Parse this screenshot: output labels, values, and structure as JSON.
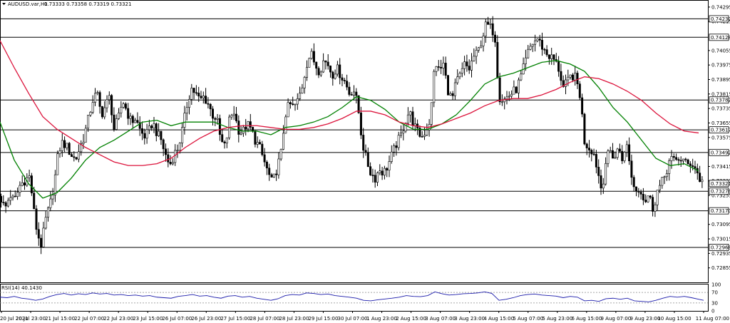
{
  "header": {
    "symbol_label": "AUDUSD.var,H1",
    "ohlc_label": "0.73333 0.73358 0.73319 0.73321"
  },
  "rsi": {
    "label": "RSI(14) 40.1430",
    "levels": [
      30,
      70
    ],
    "scale_labels": [
      "100",
      "70",
      "30",
      "0"
    ]
  },
  "chart_data": {
    "type": "candlestick",
    "symbol": "AUDUSD.var",
    "timeframe": "H1",
    "last": {
      "open": 0.73333,
      "high": 0.73358,
      "low": 0.73319,
      "close": 0.73321
    },
    "price_axis": {
      "range": [
        0.72775,
        0.7433
      ],
      "tick_labels": [
        "0.74295",
        "0.74215",
        "0.74055",
        "0.73975",
        "0.73895",
        "0.73815",
        "0.73735",
        "0.73655",
        "0.73575",
        "0.73415",
        "0.73335",
        "0.73255",
        "0.73095",
        "0.73015",
        "0.72935",
        "0.72855"
      ]
    },
    "time_axis_labels": [
      "20 Jul 2021",
      "20 Jul 23:00",
      "21 Jul 15:00",
      "22 Jul 07:00",
      "22 Jul 23:00",
      "23 Jul 15:00",
      "26 Jul 07:00",
      "26 Jul 23:00",
      "27 Jul 15:00",
      "28 Jul 07:00",
      "28 Jul 23:00",
      "29 Jul 15:00",
      "30 Jul 07:00",
      "1 Aug 23:00",
      "2 Aug 15:00",
      "3 Aug 07:00",
      "3 Aug 23:00",
      "4 Aug 15:00",
      "5 Aug 07:00",
      "5 Aug 23:00",
      "6 Aug 15:00",
      "9 Aug 07:00",
      "9 Aug 23:00",
      "10 Aug 15:00",
      "11 Aug 07:00"
    ],
    "horizontal_levels": [
      {
        "label": "0.74230",
        "value": 0.7423
      },
      {
        "label": "0.74128",
        "value": 0.74128
      },
      {
        "label": "0.73782",
        "value": 0.73782
      },
      {
        "label": "0.73617",
        "value": 0.73617
      },
      {
        "label": "0.73492",
        "value": 0.73492
      },
      {
        "label": "0.73278",
        "value": 0.73278
      },
      {
        "label": "0.73170",
        "value": 0.7317
      },
      {
        "label": "0.72968",
        "value": 0.72968
      }
    ],
    "current_price_label": "0.73321",
    "current_price": 0.73321,
    "close_path": [
      [
        0,
        0.7325
      ],
      [
        7,
        0.7318
      ],
      [
        14,
        0.7326
      ],
      [
        20,
        0.7322
      ],
      [
        28,
        0.7331
      ],
      [
        35,
        0.7334
      ],
      [
        42,
        0.7336
      ],
      [
        47,
        0.7318
      ],
      [
        52,
        0.7305
      ],
      [
        58,
        0.7298
      ],
      [
        64,
        0.7312
      ],
      [
        70,
        0.732
      ],
      [
        76,
        0.7332
      ],
      [
        82,
        0.735
      ],
      [
        88,
        0.7355
      ],
      [
        94,
        0.7352
      ],
      [
        100,
        0.7348
      ],
      [
        106,
        0.7345
      ],
      [
        112,
        0.7352
      ],
      [
        118,
        0.7358
      ],
      [
        124,
        0.7368
      ],
      [
        130,
        0.7378
      ],
      [
        136,
        0.7382
      ],
      [
        142,
        0.737
      ],
      [
        148,
        0.7375
      ],
      [
        154,
        0.738
      ],
      [
        160,
        0.7362
      ],
      [
        166,
        0.7368
      ],
      [
        172,
        0.7378
      ],
      [
        178,
        0.7372
      ],
      [
        184,
        0.7366
      ],
      [
        190,
        0.7368
      ],
      [
        196,
        0.7362
      ],
      [
        202,
        0.7358
      ],
      [
        208,
        0.736
      ],
      [
        214,
        0.7366
      ],
      [
        220,
        0.736
      ],
      [
        226,
        0.7356
      ],
      [
        232,
        0.7348
      ],
      [
        238,
        0.7342
      ],
      [
        244,
        0.7348
      ],
      [
        250,
        0.7352
      ],
      [
        256,
        0.7362
      ],
      [
        262,
        0.7375
      ],
      [
        268,
        0.7385
      ],
      [
        274,
        0.7382
      ],
      [
        280,
        0.7378
      ],
      [
        286,
        0.738
      ],
      [
        292,
        0.7376
      ],
      [
        298,
        0.737
      ],
      [
        304,
        0.7368
      ],
      [
        310,
        0.7355
      ],
      [
        316,
        0.7352
      ],
      [
        322,
        0.7368
      ],
      [
        328,
        0.7372
      ],
      [
        334,
        0.7362
      ],
      [
        340,
        0.736
      ],
      [
        346,
        0.7365
      ],
      [
        352,
        0.7362
      ],
      [
        358,
        0.7356
      ],
      [
        364,
        0.7352
      ],
      [
        370,
        0.7345
      ],
      [
        376,
        0.7338
      ],
      [
        382,
        0.7332
      ],
      [
        388,
        0.734
      ],
      [
        394,
        0.7348
      ],
      [
        400,
        0.737
      ],
      [
        406,
        0.7376
      ],
      [
        412,
        0.7374
      ],
      [
        418,
        0.7378
      ],
      [
        424,
        0.7386
      ],
      [
        430,
        0.7398
      ],
      [
        436,
        0.7404
      ],
      [
        442,
        0.7398
      ],
      [
        448,
        0.7394
      ],
      [
        454,
        0.74
      ],
      [
        460,
        0.7398
      ],
      [
        466,
        0.7392
      ],
      [
        472,
        0.7396
      ],
      [
        478,
        0.7392
      ],
      [
        484,
        0.7388
      ],
      [
        490,
        0.7382
      ],
      [
        496,
        0.7384
      ],
      [
        502,
        0.7375
      ],
      [
        508,
        0.7355
      ],
      [
        514,
        0.7345
      ],
      [
        520,
        0.7338
      ],
      [
        526,
        0.7335
      ],
      [
        532,
        0.734
      ],
      [
        538,
        0.7338
      ],
      [
        544,
        0.7342
      ],
      [
        550,
        0.7348
      ],
      [
        556,
        0.7354
      ],
      [
        562,
        0.7358
      ],
      [
        568,
        0.7366
      ],
      [
        574,
        0.7372
      ],
      [
        580,
        0.7365
      ],
      [
        586,
        0.736
      ],
      [
        592,
        0.7358
      ],
      [
        598,
        0.7362
      ],
      [
        604,
        0.7368
      ],
      [
        610,
        0.74
      ],
      [
        616,
        0.7394
      ],
      [
        622,
        0.7398
      ],
      [
        628,
        0.7384
      ],
      [
        634,
        0.7378
      ],
      [
        640,
        0.7388
      ],
      [
        646,
        0.7392
      ],
      [
        652,
        0.7398
      ],
      [
        658,
        0.7395
      ],
      [
        664,
        0.7402
      ],
      [
        670,
        0.7404
      ],
      [
        676,
        0.7412
      ],
      [
        682,
        0.742
      ],
      [
        688,
        0.7418
      ],
      [
        694,
        0.7415
      ],
      [
        700,
        0.738
      ],
      [
        706,
        0.7378
      ],
      [
        712,
        0.738
      ],
      [
        718,
        0.7382
      ],
      [
        724,
        0.7384
      ],
      [
        730,
        0.739
      ],
      [
        736,
        0.7398
      ],
      [
        742,
        0.7406
      ],
      [
        748,
        0.741
      ],
      [
        754,
        0.7412
      ],
      [
        760,
        0.7408
      ],
      [
        766,
        0.7404
      ],
      [
        772,
        0.7402
      ],
      [
        778,
        0.74
      ],
      [
        784,
        0.7395
      ],
      [
        790,
        0.7385
      ],
      [
        796,
        0.7388
      ],
      [
        802,
        0.7392
      ],
      [
        808,
        0.739
      ],
      [
        814,
        0.738
      ],
      [
        820,
        0.7355
      ],
      [
        826,
        0.7352
      ],
      [
        832,
        0.735
      ],
      [
        838,
        0.734
      ],
      [
        844,
        0.7328
      ],
      [
        850,
        0.7345
      ],
      [
        856,
        0.735
      ],
      [
        862,
        0.7346
      ],
      [
        868,
        0.7352
      ],
      [
        874,
        0.7345
      ],
      [
        880,
        0.7354
      ],
      [
        886,
        0.7335
      ],
      [
        892,
        0.7328
      ],
      [
        898,
        0.733
      ],
      [
        904,
        0.7322
      ],
      [
        910,
        0.7326
      ],
      [
        916,
        0.7318
      ],
      [
        922,
        0.7328
      ],
      [
        928,
        0.7332
      ],
      [
        934,
        0.7338
      ],
      [
        940,
        0.7346
      ],
      [
        946,
        0.7344
      ],
      [
        952,
        0.7346
      ],
      [
        958,
        0.7345
      ],
      [
        964,
        0.7342
      ],
      [
        970,
        0.7344
      ],
      [
        976,
        0.734
      ],
      [
        982,
        0.7334
      ],
      [
        987,
        0.73321
      ]
    ],
    "moving_averages": [
      {
        "color": "#008000",
        "points": [
          [
            0,
            0.7366
          ],
          [
            20,
            0.7345
          ],
          [
            40,
            0.7332
          ],
          [
            60,
            0.7324
          ],
          [
            80,
            0.7327
          ],
          [
            100,
            0.7335
          ],
          [
            120,
            0.7345
          ],
          [
            140,
            0.7352
          ],
          [
            160,
            0.7356
          ],
          [
            180,
            0.7361
          ],
          [
            200,
            0.7366
          ],
          [
            220,
            0.7367
          ],
          [
            240,
            0.7364
          ],
          [
            260,
            0.7366
          ],
          [
            280,
            0.7366
          ],
          [
            300,
            0.7366
          ],
          [
            320,
            0.7363
          ],
          [
            340,
            0.7361
          ],
          [
            360,
            0.7361
          ],
          [
            380,
            0.7359
          ],
          [
            400,
            0.7363
          ],
          [
            420,
            0.7364
          ],
          [
            440,
            0.7366
          ],
          [
            460,
            0.7369
          ],
          [
            480,
            0.7374
          ],
          [
            500,
            0.738
          ],
          [
            520,
            0.7378
          ],
          [
            540,
            0.7373
          ],
          [
            560,
            0.7366
          ],
          [
            580,
            0.7362
          ],
          [
            600,
            0.7362
          ],
          [
            620,
            0.7365
          ],
          [
            640,
            0.737
          ],
          [
            660,
            0.7378
          ],
          [
            680,
            0.7387
          ],
          [
            700,
            0.7391
          ],
          [
            720,
            0.7393
          ],
          [
            740,
            0.7396
          ],
          [
            760,
            0.7399
          ],
          [
            780,
            0.74
          ],
          [
            800,
            0.7398
          ],
          [
            820,
            0.7394
          ],
          [
            840,
            0.7385
          ],
          [
            860,
            0.7374
          ],
          [
            880,
            0.7366
          ],
          [
            900,
            0.7356
          ],
          [
            920,
            0.7346
          ],
          [
            940,
            0.7342
          ],
          [
            960,
            0.7343
          ],
          [
            980,
            0.7339
          ]
        ]
      },
      {
        "color": "#dc143c",
        "points": [
          [
            0,
            0.7411
          ],
          [
            20,
            0.7396
          ],
          [
            40,
            0.7382
          ],
          [
            60,
            0.7369
          ],
          [
            80,
            0.7362
          ],
          [
            100,
            0.7357
          ],
          [
            120,
            0.7352
          ],
          [
            140,
            0.7348
          ],
          [
            160,
            0.7344
          ],
          [
            180,
            0.7342
          ],
          [
            200,
            0.7342
          ],
          [
            220,
            0.7343
          ],
          [
            240,
            0.7346
          ],
          [
            260,
            0.7352
          ],
          [
            280,
            0.7357
          ],
          [
            300,
            0.7361
          ],
          [
            320,
            0.7363
          ],
          [
            340,
            0.7364
          ],
          [
            360,
            0.7364
          ],
          [
            380,
            0.7363
          ],
          [
            400,
            0.7362
          ],
          [
            420,
            0.7362
          ],
          [
            440,
            0.7363
          ],
          [
            460,
            0.7365
          ],
          [
            480,
            0.7368
          ],
          [
            500,
            0.7372
          ],
          [
            520,
            0.7372
          ],
          [
            540,
            0.737
          ],
          [
            560,
            0.7366
          ],
          [
            580,
            0.7364
          ],
          [
            600,
            0.7363
          ],
          [
            620,
            0.7365
          ],
          [
            640,
            0.7368
          ],
          [
            660,
            0.7371
          ],
          [
            680,
            0.7375
          ],
          [
            700,
            0.7378
          ],
          [
            720,
            0.7379
          ],
          [
            740,
            0.7379
          ],
          [
            760,
            0.7381
          ],
          [
            780,
            0.7384
          ],
          [
            800,
            0.7388
          ],
          [
            820,
            0.7391
          ],
          [
            840,
            0.739
          ],
          [
            860,
            0.7387
          ],
          [
            880,
            0.7383
          ],
          [
            900,
            0.7378
          ],
          [
            920,
            0.7371
          ],
          [
            940,
            0.7365
          ],
          [
            960,
            0.7361
          ],
          [
            980,
            0.736
          ]
        ]
      }
    ],
    "rsi_series": [
      [
        0,
        52
      ],
      [
        10,
        50
      ],
      [
        20,
        55
      ],
      [
        30,
        48
      ],
      [
        40,
        45
      ],
      [
        50,
        40
      ],
      [
        60,
        45
      ],
      [
        70,
        55
      ],
      [
        80,
        62
      ],
      [
        90,
        66
      ],
      [
        100,
        60
      ],
      [
        110,
        65
      ],
      [
        120,
        62
      ],
      [
        130,
        68
      ],
      [
        140,
        64
      ],
      [
        150,
        66
      ],
      [
        160,
        60
      ],
      [
        170,
        62
      ],
      [
        180,
        58
      ],
      [
        190,
        60
      ],
      [
        200,
        56
      ],
      [
        210,
        58
      ],
      [
        220,
        52
      ],
      [
        230,
        50
      ],
      [
        240,
        48
      ],
      [
        250,
        55
      ],
      [
        260,
        58
      ],
      [
        270,
        62
      ],
      [
        280,
        56
      ],
      [
        290,
        58
      ],
      [
        300,
        52
      ],
      [
        310,
        48
      ],
      [
        320,
        56
      ],
      [
        330,
        58
      ],
      [
        340,
        52
      ],
      [
        350,
        55
      ],
      [
        360,
        48
      ],
      [
        370,
        44
      ],
      [
        380,
        40
      ],
      [
        390,
        46
      ],
      [
        400,
        58
      ],
      [
        410,
        62
      ],
      [
        420,
        60
      ],
      [
        430,
        68
      ],
      [
        440,
        66
      ],
      [
        450,
        62
      ],
      [
        460,
        64
      ],
      [
        470,
        58
      ],
      [
        480,
        55
      ],
      [
        490,
        52
      ],
      [
        500,
        48
      ],
      [
        510,
        40
      ],
      [
        520,
        38
      ],
      [
        530,
        42
      ],
      [
        540,
        45
      ],
      [
        550,
        48
      ],
      [
        560,
        52
      ],
      [
        570,
        58
      ],
      [
        580,
        55
      ],
      [
        590,
        54
      ],
      [
        600,
        58
      ],
      [
        610,
        72
      ],
      [
        620,
        65
      ],
      [
        630,
        60
      ],
      [
        640,
        62
      ],
      [
        650,
        65
      ],
      [
        660,
        66
      ],
      [
        670,
        68
      ],
      [
        680,
        72
      ],
      [
        690,
        66
      ],
      [
        700,
        40
      ],
      [
        710,
        44
      ],
      [
        720,
        50
      ],
      [
        730,
        58
      ],
      [
        740,
        62
      ],
      [
        750,
        64
      ],
      [
        760,
        60
      ],
      [
        770,
        58
      ],
      [
        780,
        56
      ],
      [
        790,
        50
      ],
      [
        800,
        55
      ],
      [
        810,
        52
      ],
      [
        820,
        38
      ],
      [
        830,
        40
      ],
      [
        840,
        36
      ],
      [
        850,
        46
      ],
      [
        860,
        48
      ],
      [
        870,
        44
      ],
      [
        880,
        48
      ],
      [
        890,
        38
      ],
      [
        900,
        36
      ],
      [
        910,
        34
      ],
      [
        920,
        40
      ],
      [
        930,
        48
      ],
      [
        940,
        55
      ],
      [
        950,
        52
      ],
      [
        960,
        55
      ],
      [
        970,
        50
      ],
      [
        980,
        44
      ],
      [
        987,
        40.14
      ]
    ],
    "grid": false,
    "legend": "none"
  }
}
